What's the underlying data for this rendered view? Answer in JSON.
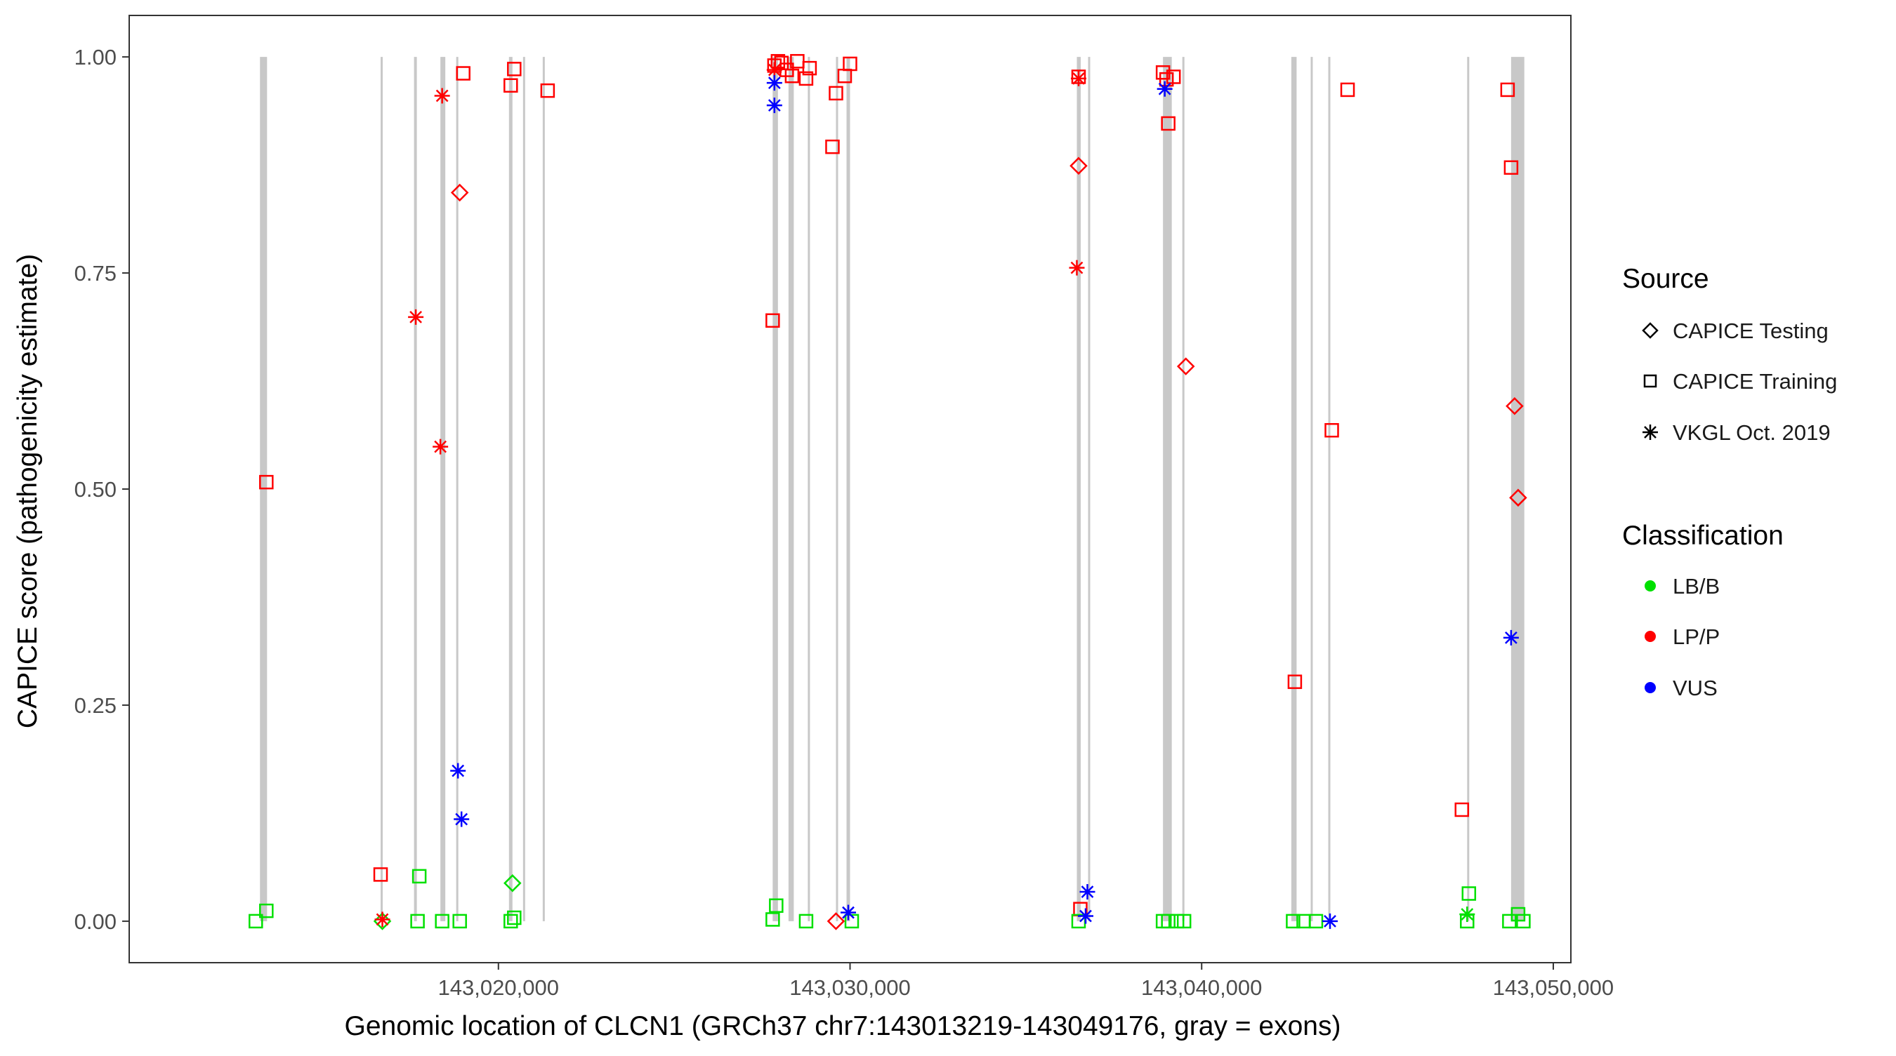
{
  "chart_data": {
    "type": "scatter",
    "xlabel": "Genomic location of CLCN1 (GRCh37 chr7:143013219-143049176, gray = exons)",
    "ylabel": "CAPICE score (pathogenicity estimate)",
    "xlim": [
      143009500,
      143050500
    ],
    "ylim": [
      -0.048,
      1.048
    ],
    "x_ticks": [
      143020000,
      143030000,
      143040000,
      143050000
    ],
    "x_tick_labels": [
      "143,020,000",
      "143,030,000",
      "143,040,000",
      "143,050,000"
    ],
    "y_ticks": [
      0.0,
      0.25,
      0.5,
      0.75,
      1.0
    ],
    "y_tick_labels": [
      "0.00",
      "0.25",
      "0.50",
      "0.75",
      "1.00"
    ],
    "grid": false,
    "exons": [
      [
        143013219,
        143013420
      ],
      [
        143016650,
        143016700
      ],
      [
        143017600,
        143017680
      ],
      [
        143018350,
        143018490
      ],
      [
        143018800,
        143018850
      ],
      [
        143020300,
        143020400
      ],
      [
        143020700,
        143020750
      ],
      [
        143021260,
        143021310
      ],
      [
        143027800,
        143027950
      ],
      [
        143028250,
        143028400
      ],
      [
        143028800,
        143028850
      ],
      [
        143029600,
        143029650
      ],
      [
        143029900,
        143030000
      ],
      [
        143036450,
        143036560
      ],
      [
        143036770,
        143036810
      ],
      [
        143038900,
        143039150
      ],
      [
        143039450,
        143039500
      ],
      [
        143042550,
        143042700
      ],
      [
        143043100,
        143043150
      ],
      [
        143043600,
        143043650
      ],
      [
        143047550,
        143047600
      ],
      [
        143048800,
        143049176
      ]
    ],
    "legend": {
      "position": "right",
      "source_title": "Source",
      "source_items": [
        {
          "label": "CAPICE Testing",
          "shape": "diamond"
        },
        {
          "label": "CAPICE Training",
          "shape": "square"
        },
        {
          "label": "VKGL Oct. 2019",
          "shape": "asterisk"
        }
      ],
      "class_title": "Classification",
      "class_items": [
        {
          "label": "LB/B",
          "color": "#00e000"
        },
        {
          "label": "LP/P",
          "color": "#ff0000"
        },
        {
          "label": "VUS",
          "color": "#0000ff"
        }
      ]
    },
    "colors": {
      "LB/B": "#00e000",
      "LP/P": "#ff0000",
      "VUS": "#0000ff",
      "exon": "#c8c8c8"
    },
    "series": [
      {
        "name": "CAPICE Testing",
        "shape": "diamond",
        "points": [
          {
            "x": 143018900,
            "y": 0.843,
            "class": "LP/P"
          },
          {
            "x": 143036500,
            "y": 0.874,
            "class": "LP/P"
          },
          {
            "x": 143039550,
            "y": 0.642,
            "class": "LP/P"
          },
          {
            "x": 143048900,
            "y": 0.596,
            "class": "LP/P"
          },
          {
            "x": 143049000,
            "y": 0.49,
            "class": "LP/P"
          },
          {
            "x": 143029600,
            "y": 0.0,
            "class": "LP/P"
          },
          {
            "x": 143020400,
            "y": 0.044,
            "class": "LB/B"
          },
          {
            "x": 143016700,
            "y": 0.0,
            "class": "LB/B"
          }
        ]
      },
      {
        "name": "CAPICE Training",
        "shape": "square",
        "points": [
          {
            "x": 143013400,
            "y": 0.508,
            "class": "LP/P"
          },
          {
            "x": 143016650,
            "y": 0.054,
            "class": "LP/P"
          },
          {
            "x": 143019000,
            "y": 0.981,
            "class": "LP/P"
          },
          {
            "x": 143020350,
            "y": 0.967,
            "class": "LP/P"
          },
          {
            "x": 143020450,
            "y": 0.986,
            "class": "LP/P"
          },
          {
            "x": 143021400,
            "y": 0.961,
            "class": "LP/P"
          },
          {
            "x": 143027800,
            "y": 0.695,
            "class": "LP/P"
          },
          {
            "x": 143027850,
            "y": 0.99,
            "class": "LP/P"
          },
          {
            "x": 143027950,
            "y": 0.995,
            "class": "LP/P"
          },
          {
            "x": 143028050,
            "y": 0.993,
            "class": "LP/P"
          },
          {
            "x": 143028200,
            "y": 0.985,
            "class": "LP/P"
          },
          {
            "x": 143028350,
            "y": 0.978,
            "class": "LP/P"
          },
          {
            "x": 143028500,
            "y": 0.995,
            "class": "LP/P"
          },
          {
            "x": 143028750,
            "y": 0.975,
            "class": "LP/P"
          },
          {
            "x": 143028850,
            "y": 0.987,
            "class": "LP/P"
          },
          {
            "x": 143029500,
            "y": 0.896,
            "class": "LP/P"
          },
          {
            "x": 143029600,
            "y": 0.958,
            "class": "LP/P"
          },
          {
            "x": 143029850,
            "y": 0.978,
            "class": "LP/P"
          },
          {
            "x": 143030000,
            "y": 0.992,
            "class": "LP/P"
          },
          {
            "x": 143036500,
            "y": 0.977,
            "class": "LP/P"
          },
          {
            "x": 143036550,
            "y": 0.014,
            "class": "LP/P"
          },
          {
            "x": 143038900,
            "y": 0.982,
            "class": "LP/P"
          },
          {
            "x": 143039000,
            "y": 0.974,
            "class": "LP/P"
          },
          {
            "x": 143039050,
            "y": 0.923,
            "class": "LP/P"
          },
          {
            "x": 143039200,
            "y": 0.977,
            "class": "LP/P"
          },
          {
            "x": 143042650,
            "y": 0.277,
            "class": "LP/P"
          },
          {
            "x": 143043700,
            "y": 0.568,
            "class": "LP/P"
          },
          {
            "x": 143044150,
            "y": 0.962,
            "class": "LP/P"
          },
          {
            "x": 143047400,
            "y": 0.129,
            "class": "LP/P"
          },
          {
            "x": 143048700,
            "y": 0.962,
            "class": "LP/P"
          },
          {
            "x": 143048800,
            "y": 0.872,
            "class": "LP/P"
          },
          {
            "x": 143013100,
            "y": 0.0,
            "class": "LB/B"
          },
          {
            "x": 143013400,
            "y": 0.012,
            "class": "LB/B"
          },
          {
            "x": 143017700,
            "y": 0.0,
            "class": "LB/B"
          },
          {
            "x": 143017750,
            "y": 0.052,
            "class": "LB/B"
          },
          {
            "x": 143018400,
            "y": 0.0,
            "class": "LB/B"
          },
          {
            "x": 143018900,
            "y": 0.0,
            "class": "LB/B"
          },
          {
            "x": 143020350,
            "y": 0.0,
            "class": "LB/B"
          },
          {
            "x": 143020450,
            "y": 0.004,
            "class": "LB/B"
          },
          {
            "x": 143027800,
            "y": 0.002,
            "class": "LB/B"
          },
          {
            "x": 143027900,
            "y": 0.018,
            "class": "LB/B"
          },
          {
            "x": 143028750,
            "y": 0.0,
            "class": "LB/B"
          },
          {
            "x": 143030050,
            "y": 0.0,
            "class": "LB/B"
          },
          {
            "x": 143036500,
            "y": 0.0,
            "class": "LB/B"
          },
          {
            "x": 143038900,
            "y": 0.0,
            "class": "LB/B"
          },
          {
            "x": 143039050,
            "y": 0.0,
            "class": "LB/B"
          },
          {
            "x": 143039300,
            "y": 0.0,
            "class": "LB/B"
          },
          {
            "x": 143039500,
            "y": 0.0,
            "class": "LB/B"
          },
          {
            "x": 143042600,
            "y": 0.0,
            "class": "LB/B"
          },
          {
            "x": 143042900,
            "y": 0.0,
            "class": "LB/B"
          },
          {
            "x": 143043250,
            "y": 0.0,
            "class": "LB/B"
          },
          {
            "x": 143047550,
            "y": 0.0,
            "class": "LB/B"
          },
          {
            "x": 143047600,
            "y": 0.032,
            "class": "LB/B"
          },
          {
            "x": 143048750,
            "y": 0.0,
            "class": "LB/B"
          },
          {
            "x": 143049000,
            "y": 0.008,
            "class": "LB/B"
          },
          {
            "x": 143049150,
            "y": 0.0,
            "class": "LB/B"
          }
        ]
      },
      {
        "name": "VKGL Oct. 2019",
        "shape": "asterisk",
        "points": [
          {
            "x": 143018400,
            "y": 0.955,
            "class": "LP/P"
          },
          {
            "x": 143017650,
            "y": 0.699,
            "class": "LP/P"
          },
          {
            "x": 143018350,
            "y": 0.549,
            "class": "LP/P"
          },
          {
            "x": 143016700,
            "y": 0.002,
            "class": "LP/P"
          },
          {
            "x": 143027850,
            "y": 0.985,
            "class": "LP/P"
          },
          {
            "x": 143036500,
            "y": 0.975,
            "class": "LP/P"
          },
          {
            "x": 143036450,
            "y": 0.756,
            "class": "LP/P"
          },
          {
            "x": 143018850,
            "y": 0.174,
            "class": "VUS"
          },
          {
            "x": 143018950,
            "y": 0.118,
            "class": "VUS"
          },
          {
            "x": 143027850,
            "y": 0.944,
            "class": "VUS"
          },
          {
            "x": 143027850,
            "y": 0.97,
            "class": "VUS"
          },
          {
            "x": 143029950,
            "y": 0.01,
            "class": "VUS"
          },
          {
            "x": 143036750,
            "y": 0.034,
            "class": "VUS"
          },
          {
            "x": 143036700,
            "y": 0.006,
            "class": "VUS"
          },
          {
            "x": 143038950,
            "y": 0.963,
            "class": "VUS"
          },
          {
            "x": 143043650,
            "y": 0.0,
            "class": "VUS"
          },
          {
            "x": 143048800,
            "y": 0.328,
            "class": "VUS"
          },
          {
            "x": 143047550,
            "y": 0.008,
            "class": "LB/B"
          }
        ]
      }
    ]
  }
}
